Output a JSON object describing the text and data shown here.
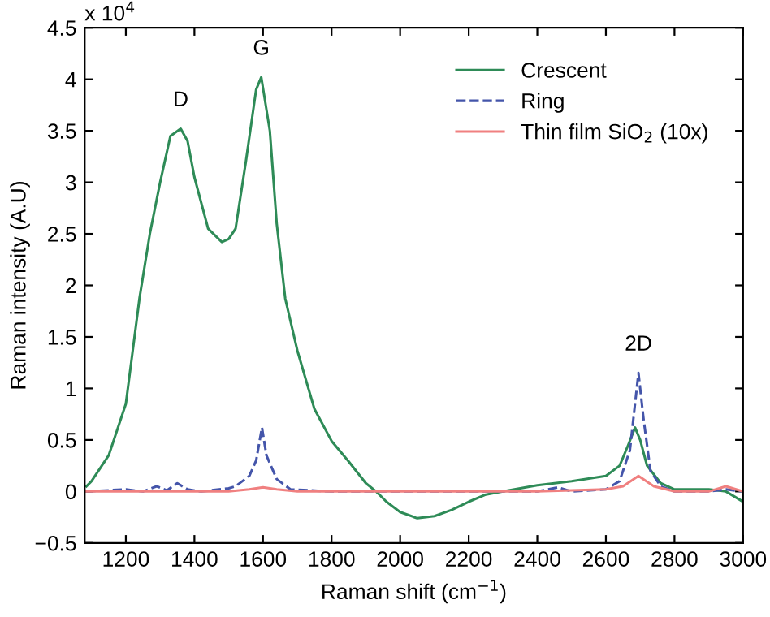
{
  "chart_data": {
    "type": "line",
    "xlabel": "Raman shift (cm$^{−1}$)",
    "ylabel": "Raman intensity (A.U)",
    "xlim": [
      1080,
      3000
    ],
    "xticks": [
      1200,
      1400,
      1600,
      1800,
      2000,
      2200,
      2400,
      2600,
      2800,
      3000
    ],
    "ylim": [
      -0.5,
      4.5
    ],
    "yticks": [
      -0.5,
      0,
      0.5,
      1,
      1.5,
      2,
      2.5,
      3,
      3.5,
      4,
      4.5
    ],
    "grid": false,
    "legend": "top right",
    "annotations": [
      "x 10$^{4}$",
      {
        "text": "D",
        "x": 1360,
        "y": 3.52
      },
      {
        "text": "G",
        "x": 1595,
        "y": 4.02
      },
      {
        "text": "2D",
        "x": 2695,
        "y": 1.15
      }
    ],
    "series": [
      {
        "name": "Crescent",
        "color": "#2e8b57",
        "line_style": "solid",
        "x": [
          1085,
          1100,
          1150,
          1200,
          1240,
          1270,
          1300,
          1330,
          1360,
          1380,
          1400,
          1440,
          1480,
          1500,
          1520,
          1550,
          1580,
          1595,
          1620,
          1640,
          1665,
          1700,
          1750,
          1800,
          1850,
          1900,
          1930,
          1960,
          2000,
          2050,
          2100,
          2150,
          2200,
          2250,
          2300,
          2400,
          2500,
          2600,
          2640,
          2665,
          2685,
          2700,
          2720,
          2760,
          2800,
          2900,
          2950,
          3000
        ],
        "values": [
          0.05,
          0.1,
          0.35,
          0.85,
          1.88,
          2.5,
          3.0,
          3.45,
          3.52,
          3.4,
          3.05,
          2.55,
          2.42,
          2.45,
          2.55,
          3.2,
          3.9,
          4.02,
          3.5,
          2.6,
          1.87,
          1.37,
          0.8,
          0.49,
          0.29,
          0.08,
          0.0,
          -0.1,
          -0.2,
          -0.26,
          -0.24,
          -0.18,
          -0.1,
          -0.03,
          0.0,
          0.06,
          0.1,
          0.15,
          0.25,
          0.45,
          0.62,
          0.5,
          0.25,
          0.08,
          0.02,
          0.02,
          0.0,
          -0.1
        ]
      },
      {
        "name": "Ring",
        "color": "#4455aa",
        "line_style": "dashed",
        "x": [
          1085,
          1200,
          1250,
          1290,
          1320,
          1350,
          1380,
          1420,
          1500,
          1520,
          1560,
          1580,
          1597,
          1610,
          1640,
          1680,
          1800,
          2000,
          2200,
          2400,
          2460,
          2500,
          2600,
          2640,
          2670,
          2695,
          2710,
          2730,
          2760,
          2800,
          2900,
          2950,
          3000
        ],
        "values": [
          0.0,
          0.02,
          0.0,
          0.05,
          0.01,
          0.08,
          0.02,
          0.0,
          0.03,
          0.05,
          0.15,
          0.3,
          0.62,
          0.35,
          0.12,
          0.02,
          0.0,
          0.0,
          0.0,
          0.0,
          0.04,
          0.0,
          0.02,
          0.1,
          0.4,
          1.15,
          0.7,
          0.2,
          0.05,
          0.0,
          0.0,
          0.02,
          0.0
        ]
      },
      {
        "name": "Thin film SiO$_{2}$ (10x)",
        "color": "#f08080",
        "line_style": "solid",
        "x": [
          1085,
          1500,
          1560,
          1600,
          1640,
          1700,
          2000,
          2400,
          2600,
          2650,
          2695,
          2740,
          2800,
          2900,
          2950,
          3000
        ],
        "values": [
          0.0,
          0.0,
          0.02,
          0.04,
          0.02,
          0.0,
          0.0,
          0.0,
          0.02,
          0.05,
          0.15,
          0.05,
          0.0,
          0.0,
          0.05,
          0.0
        ]
      }
    ]
  }
}
